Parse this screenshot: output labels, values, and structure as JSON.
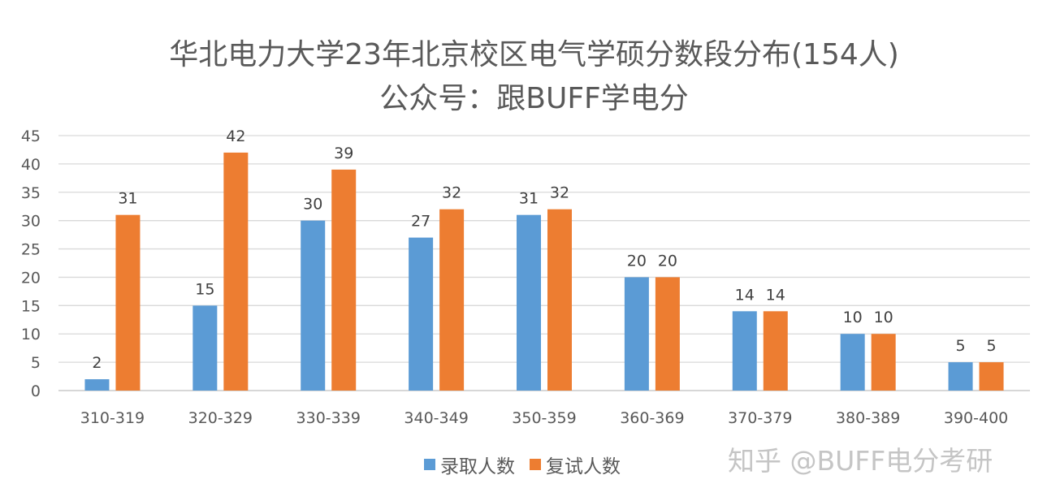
{
  "watermark": "知乎 @BUFF电分考研",
  "chart_data": {
    "type": "bar",
    "title": "华北电力大学23年北京校区电气学硕分数段分布(154人)",
    "subtitle": "公众号：跟BUFF学电分",
    "categories": [
      "310-319",
      "320-329",
      "330-339",
      "340-349",
      "350-359",
      "360-369",
      "370-379",
      "380-389",
      "390-400"
    ],
    "series": [
      {
        "name": "录取人数",
        "color": "#5B9BD5",
        "values": [
          2,
          15,
          30,
          27,
          31,
          20,
          14,
          10,
          5
        ]
      },
      {
        "name": "复试人数",
        "color": "#ED7D31",
        "values": [
          31,
          42,
          39,
          32,
          32,
          20,
          14,
          10,
          5
        ]
      }
    ],
    "ylim": [
      0,
      45
    ],
    "yticks": [
      0,
      5,
      10,
      15,
      20,
      25,
      30,
      35,
      40,
      45
    ],
    "grid": true,
    "legend_position": "bottom"
  }
}
